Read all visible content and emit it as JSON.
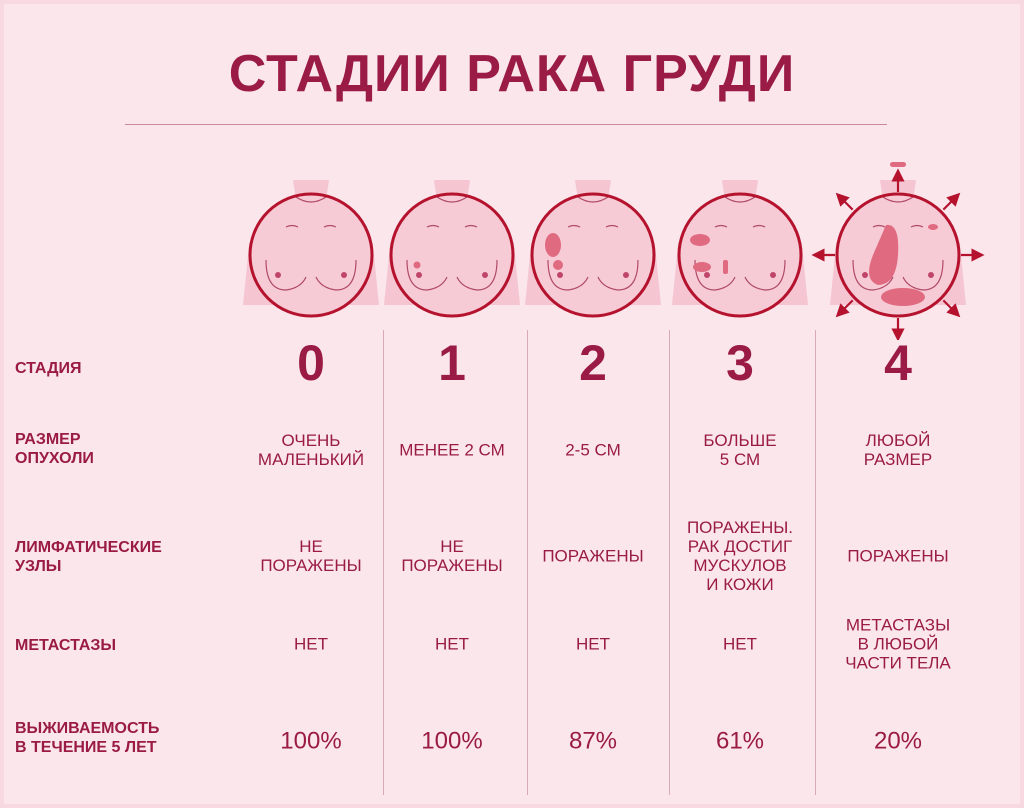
{
  "title": "СТАДИИ РАКА ГРУДИ",
  "row_labels": {
    "stage": "СТАДИЯ",
    "size": [
      "РАЗМЕР",
      "ОПУХОЛИ"
    ],
    "lymph": [
      "ЛИМФАТИЧЕСКИЕ",
      "УЗЛЫ"
    ],
    "metastases": "МЕТАСТАЗЫ",
    "survival": [
      "ВЫЖИВАЕМОСТЬ",
      "В ТЕЧЕНИЕ 5 ЛЕТ"
    ]
  },
  "stages": [
    {
      "stage": "0",
      "size": [
        "ОЧЕНЬ",
        "МАЛЕНЬКИЙ"
      ],
      "lymph": [
        "НЕ",
        "ПОРАЖЕНЫ"
      ],
      "metastases": [
        "НЕТ"
      ],
      "survival": "100%"
    },
    {
      "stage": "1",
      "size": [
        "МЕНЕЕ 2 СМ"
      ],
      "lymph": [
        "НЕ",
        "ПОРАЖЕНЫ"
      ],
      "metastases": [
        "НЕТ"
      ],
      "survival": "100%"
    },
    {
      "stage": "2",
      "size": [
        "2-5 СМ"
      ],
      "lymph": [
        "ПОРАЖЕНЫ"
      ],
      "metastases": [
        "НЕТ"
      ],
      "survival": "87%"
    },
    {
      "stage": "3",
      "size": [
        "БОЛЬШЕ",
        "5 СМ"
      ],
      "lymph": [
        "ПОРАЖЕНЫ.",
        "РАК ДОСТИГ",
        "МУСКУЛОВ",
        "И КОЖИ"
      ],
      "metastases": [
        "НЕТ"
      ],
      "survival": "61%"
    },
    {
      "stage": "4",
      "size": [
        "ЛЮБОЙ",
        "РАЗМЕР"
      ],
      "lymph": [
        "ПОРАЖЕНЫ"
      ],
      "metastases": [
        "МЕТАСТАЗЫ",
        "В ЛЮБОЙ",
        "ЧАСТИ ТЕЛА"
      ],
      "survival": "20%"
    }
  ],
  "colors": {
    "title": "#9a1b45",
    "circle": "#b5122e",
    "background": "#fbe6ec",
    "tumor": "#e06a80"
  }
}
